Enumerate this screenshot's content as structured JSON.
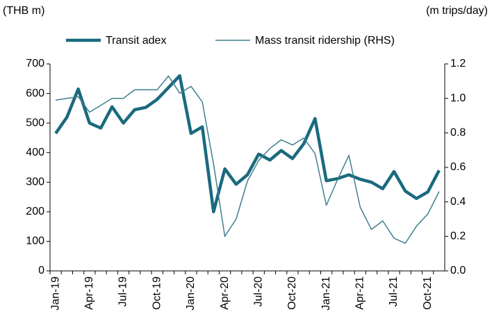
{
  "chart_data": {
    "type": "line",
    "y_label": "(THB m)",
    "y2_label": "(m trips/day)",
    "categories": [
      "Jan-19",
      null,
      null,
      "Apr-19",
      null,
      null,
      "Jul-19",
      null,
      null,
      "Oct-19",
      null,
      null,
      "Jan-20",
      null,
      null,
      "Apr-20",
      null,
      null,
      "Jul-20",
      null,
      null,
      "Oct-20",
      null,
      null,
      "Jan-21",
      null,
      null,
      "Apr-21",
      null,
      null,
      "Jul-21",
      null,
      null,
      "Oct-21",
      null
    ],
    "series": [
      {
        "name": "Transit adex",
        "color": "#1a6a7e",
        "width": 4.5,
        "axis": "y",
        "values": [
          465,
          520,
          615,
          500,
          483,
          555,
          500,
          545,
          553,
          580,
          620,
          660,
          465,
          487,
          200,
          345,
          293,
          325,
          395,
          375,
          407,
          380,
          430,
          515,
          305,
          312,
          325,
          310,
          300,
          278,
          336,
          270,
          245,
          267,
          340
        ]
      },
      {
        "name": "Mass transit ridership (RHS)",
        "color": "#3e7f8e",
        "width": 1.5,
        "axis": "y2",
        "values": [
          0.99,
          1.0,
          1.01,
          0.92,
          0.96,
          1.0,
          1.0,
          1.05,
          1.05,
          1.05,
          1.13,
          1.03,
          1.07,
          0.98,
          0.62,
          0.2,
          0.3,
          0.52,
          0.64,
          0.71,
          0.76,
          0.73,
          0.77,
          0.68,
          0.38,
          0.53,
          0.67,
          0.37,
          0.24,
          0.29,
          0.19,
          0.16,
          0.26,
          0.33,
          0.46
        ]
      }
    ],
    "ylim": [
      0,
      700
    ],
    "yticks": [
      0,
      100,
      200,
      300,
      400,
      500,
      600,
      700
    ],
    "y2lim": [
      0,
      1.2
    ],
    "y2ticks": [
      {
        "value": 0,
        "label": "0.0"
      },
      0.2,
      0.4,
      0.6,
      0.8,
      {
        "value": 1,
        "label": "1.0"
      },
      1.2
    ],
    "grid": false
  }
}
